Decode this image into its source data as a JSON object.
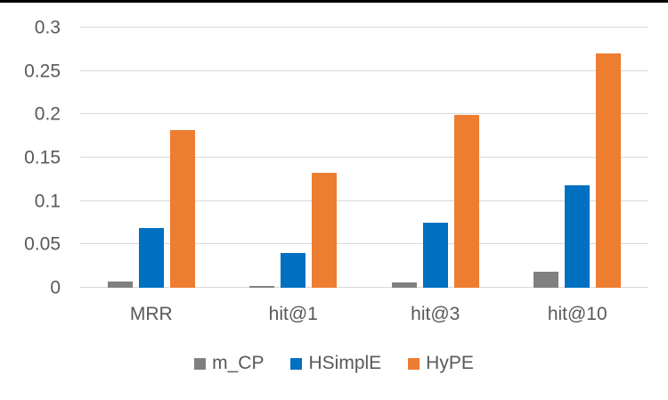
{
  "colors": {
    "background": "#ffffff",
    "gridline": "#d9d9d9",
    "axis_text": "#595959",
    "top_border": "#000000"
  },
  "chart_data": {
    "type": "bar",
    "categories": [
      "MRR",
      "hit@1",
      "hit@3",
      "hit@10"
    ],
    "series": [
      {
        "name": "m_CP",
        "color": "#808080",
        "values": [
          0.007,
          0.002,
          0.006,
          0.018
        ]
      },
      {
        "name": "HSimplE",
        "color": "#0070c0",
        "values": [
          0.069,
          0.04,
          0.075,
          0.118
        ]
      },
      {
        "name": "HyPE",
        "color": "#ed7d31",
        "values": [
          0.182,
          0.133,
          0.199,
          0.27
        ]
      }
    ],
    "title": "",
    "xlabel": "",
    "ylabel": "",
    "ylim": [
      0,
      0.3
    ],
    "yticks": [
      0,
      0.05,
      0.1,
      0.15,
      0.2,
      0.25,
      0.3
    ],
    "ytick_labels": [
      "0",
      "0.05",
      "0.1",
      "0.15",
      "0.2",
      "0.25",
      "0.3"
    ],
    "grid": true,
    "legend_position": "bottom"
  }
}
